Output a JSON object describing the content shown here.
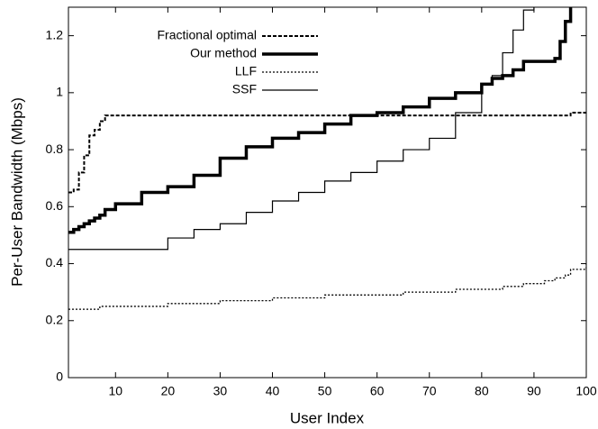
{
  "chart_data": {
    "type": "line",
    "step": "post",
    "x_label": "User Index",
    "y_label": "Per-User Bandwidth (Mbps)",
    "xlim": [
      1,
      100
    ],
    "ylim": [
      0,
      1.3
    ],
    "xticks": [
      10,
      20,
      30,
      40,
      50,
      60,
      70,
      80,
      90,
      100
    ],
    "yticks": [
      0,
      0.2,
      0.4,
      0.6,
      0.8,
      1,
      1.2
    ],
    "legend": "upper left",
    "grid": false,
    "x": [
      1,
      2,
      3,
      4,
      5,
      6,
      7,
      8,
      10,
      15,
      20,
      25,
      30,
      35,
      40,
      45,
      50,
      55,
      60,
      65,
      70,
      75,
      80,
      82,
      84,
      86,
      88,
      90,
      92,
      94,
      95,
      96,
      97,
      100
    ],
    "series": [
      {
        "name": "Fractional optimal",
        "color": "#000000",
        "dash": "4,2",
        "width": 2,
        "values": [
          0.65,
          0.66,
          0.72,
          0.78,
          0.85,
          0.87,
          0.9,
          0.92,
          0.92,
          0.92,
          0.92,
          0.92,
          0.92,
          0.92,
          0.92,
          0.92,
          0.92,
          0.92,
          0.92,
          0.92,
          0.92,
          0.92,
          0.92,
          0.92,
          0.92,
          0.92,
          0.92,
          0.92,
          0.92,
          0.92,
          0.92,
          0.92,
          0.93,
          0.93
        ]
      },
      {
        "name": "Our method",
        "color": "#000000",
        "dash": "none",
        "width": 3.5,
        "values": [
          0.51,
          0.52,
          0.53,
          0.54,
          0.55,
          0.56,
          0.57,
          0.59,
          0.61,
          0.65,
          0.67,
          0.71,
          0.77,
          0.81,
          0.84,
          0.86,
          0.89,
          0.92,
          0.93,
          0.95,
          0.98,
          1.0,
          1.03,
          1.05,
          1.06,
          1.08,
          1.11,
          1.11,
          1.11,
          1.12,
          1.18,
          1.25,
          1.35,
          1.35
        ]
      },
      {
        "name": "LLF",
        "color": "#000000",
        "dash": "2,2",
        "width": 1.3,
        "values": [
          0.24,
          0.24,
          0.24,
          0.24,
          0.24,
          0.24,
          0.25,
          0.25,
          0.25,
          0.25,
          0.26,
          0.26,
          0.27,
          0.27,
          0.28,
          0.28,
          0.29,
          0.29,
          0.29,
          0.3,
          0.3,
          0.31,
          0.31,
          0.31,
          0.32,
          0.32,
          0.33,
          0.33,
          0.34,
          0.35,
          0.35,
          0.36,
          0.38,
          0.41
        ]
      },
      {
        "name": "SSF",
        "color": "#000000",
        "dash": "none",
        "width": 1.2,
        "values": [
          0.45,
          0.45,
          0.45,
          0.45,
          0.45,
          0.45,
          0.45,
          0.45,
          0.45,
          0.45,
          0.49,
          0.52,
          0.54,
          0.58,
          0.62,
          0.65,
          0.69,
          0.72,
          0.76,
          0.8,
          0.84,
          0.93,
          1.03,
          1.06,
          1.14,
          1.22,
          1.29,
          1.35,
          1.35,
          1.35,
          1.35,
          1.35,
          1.35,
          1.35
        ]
      }
    ]
  }
}
